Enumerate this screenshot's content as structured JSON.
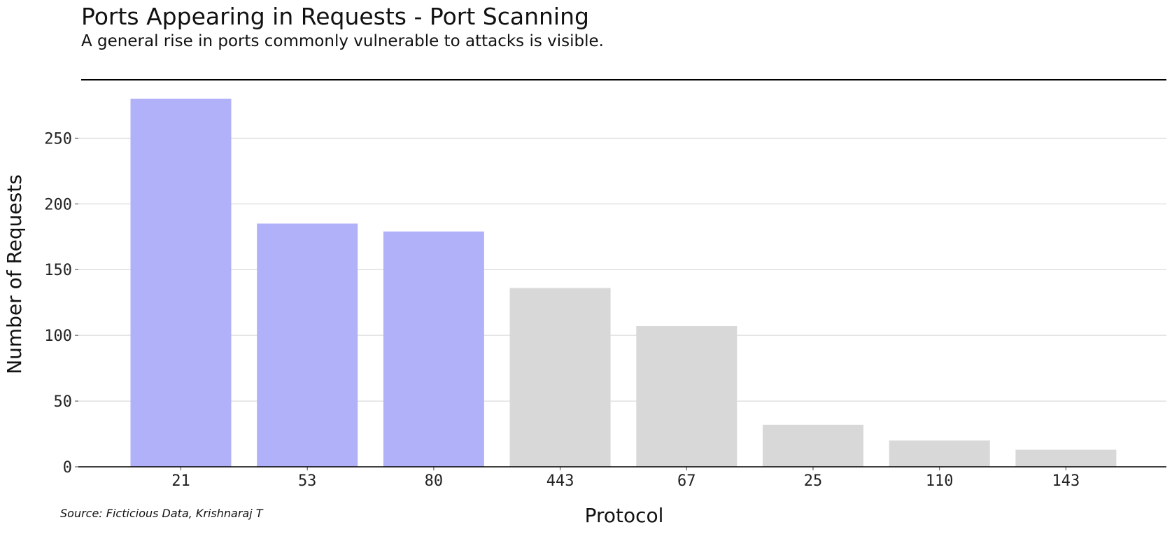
{
  "colors": {
    "highlight": "#b1b1fa",
    "muted": "#d8d8d8",
    "grid": "#d3d3d3",
    "axis": "#000000",
    "text": "#111111"
  },
  "source": "Source: Ficticious Data, Krishnaraj T",
  "chart_data": {
    "type": "bar",
    "title": "Ports Appearing in Requests - Port Scanning",
    "subtitle": "A general rise in ports commonly vulnerable to attacks is visible.",
    "xlabel": "Protocol",
    "ylabel": "Number of Requests",
    "categories": [
      "21",
      "53",
      "80",
      "443",
      "67",
      "25",
      "110",
      "143"
    ],
    "values": [
      280,
      185,
      179,
      136,
      107,
      32,
      20,
      13
    ],
    "highlighted": [
      "21",
      "53",
      "80"
    ],
    "ylim": [
      0,
      280
    ],
    "yticks": [
      0,
      50,
      100,
      150,
      200,
      250
    ],
    "grid": true,
    "legend": "none"
  }
}
